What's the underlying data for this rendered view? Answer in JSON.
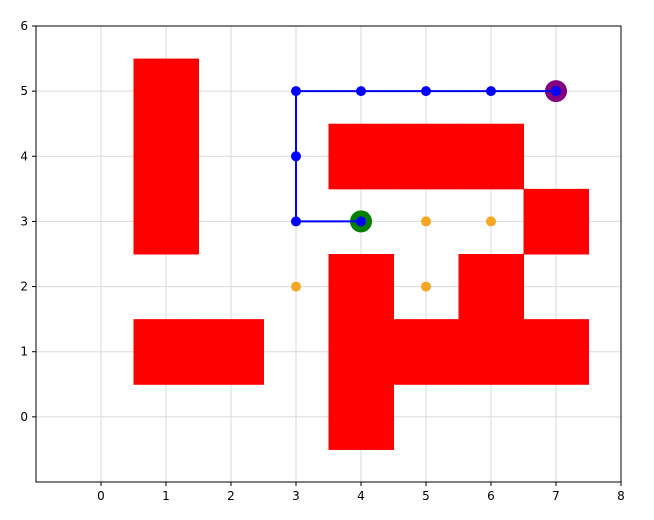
{
  "chart_data": {
    "type": "scatter",
    "title": "",
    "xlabel": "",
    "ylabel": "",
    "xlim": [
      -1,
      8
    ],
    "ylim": [
      -1,
      6
    ],
    "xticks": [
      0,
      1,
      2,
      3,
      4,
      5,
      6,
      7,
      8
    ],
    "yticks": [
      0,
      1,
      2,
      3,
      4,
      5,
      6
    ],
    "grid": true,
    "legend": "none",
    "obstacles": {
      "color": "#ff0000",
      "cells": [
        [
          1,
          3
        ],
        [
          1,
          4
        ],
        [
          1,
          5
        ],
        [
          1,
          1
        ],
        [
          2,
          1
        ],
        [
          4,
          4
        ],
        [
          5,
          4
        ],
        [
          6,
          4
        ],
        [
          7,
          3
        ],
        [
          4,
          2
        ],
        [
          4,
          1
        ],
        [
          4,
          0
        ],
        [
          5,
          1
        ],
        [
          6,
          2
        ],
        [
          6,
          1
        ],
        [
          7,
          1
        ]
      ]
    },
    "frontier_points": {
      "color": "#f5a623",
      "points": [
        [
          5,
          3
        ],
        [
          6,
          3
        ],
        [
          3,
          2
        ],
        [
          5,
          2
        ]
      ]
    },
    "path": {
      "color": "#0000ff",
      "points": [
        [
          4,
          3
        ],
        [
          3,
          3
        ],
        [
          3,
          4
        ],
        [
          3,
          5
        ],
        [
          4,
          5
        ],
        [
          5,
          5
        ],
        [
          6,
          5
        ],
        [
          7,
          5
        ]
      ]
    },
    "start": {
      "color": "#008000",
      "point": [
        4,
        3
      ]
    },
    "goal": {
      "color": "#800080",
      "point": [
        7,
        5
      ]
    }
  }
}
